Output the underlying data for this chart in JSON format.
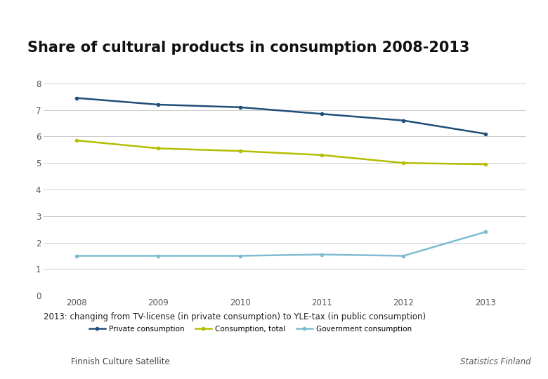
{
  "title": "Share of cultural products in consumption 2008-2013",
  "years": [
    2008,
    2009,
    2010,
    2011,
    2012,
    2013
  ],
  "private_consumption": [
    7.45,
    7.2,
    7.1,
    6.85,
    6.6,
    6.1
  ],
  "consumption_total": [
    5.85,
    5.55,
    5.45,
    5.3,
    5.0,
    4.95
  ],
  "government_consumption": [
    1.5,
    1.5,
    1.5,
    1.55,
    1.5,
    2.4
  ],
  "private_color": "#1f4e79",
  "total_color": "#b5bd00",
  "government_color": "#7fbcd2",
  "ylim": [
    0,
    8
  ],
  "yticks": [
    0,
    1,
    2,
    3,
    4,
    5,
    6,
    7,
    8
  ],
  "annotation": "2013: changing from TV-license (in private consumption) to YLE-tax (in public consumption)",
  "legend_private": "Private consumption",
  "legend_total": "Consumption, total",
  "legend_government": "Government consumption",
  "footer_left": "Finnish Culture Satellite",
  "background_color": "#ffffff",
  "plot_bg_color": "#ffffff",
  "grid_color": "#cccccc",
  "footer_bg": "#e8e8e8"
}
